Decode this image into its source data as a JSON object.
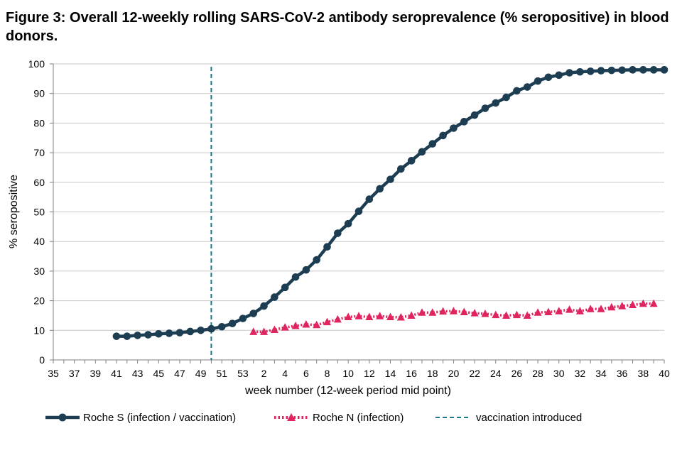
{
  "title": "Figure 3: Overall 12-weekly rolling SARS-CoV-2 antibody seroprevalence (% seropositive) in blood donors.",
  "chart_data": {
    "type": "line",
    "title": "Figure 3: Overall 12-weekly rolling SARS-CoV-2 antibody seroprevalence (% seropositive) in blood donors.",
    "xlabel": "week number (12-week period mid point)",
    "ylabel": "% seropositive",
    "ylim": [
      0,
      100
    ],
    "yticks": [
      0,
      10,
      20,
      30,
      40,
      50,
      60,
      70,
      80,
      90,
      100
    ],
    "x_categories": [
      "35",
      "36",
      "37",
      "38",
      "39",
      "40",
      "41",
      "42",
      "43",
      "44",
      "45",
      "46",
      "47",
      "48",
      "49",
      "50",
      "51",
      "52",
      "53",
      "1",
      "2",
      "3",
      "4",
      "5",
      "6",
      "7",
      "8",
      "9",
      "10",
      "11",
      "12",
      "13",
      "14",
      "15",
      "16",
      "17",
      "18",
      "19",
      "20",
      "21",
      "22",
      "23",
      "24",
      "25",
      "26",
      "27",
      "28",
      "29",
      "30",
      "31",
      "32",
      "33",
      "34",
      "35",
      "36",
      "37",
      "38",
      "39",
      "40"
    ],
    "x_tick_labels_shown": [
      "35",
      "37",
      "39",
      "41",
      "43",
      "45",
      "47",
      "49",
      "51",
      "53",
      "2",
      "4",
      "6",
      "8",
      "10",
      "12",
      "14",
      "16",
      "18",
      "20",
      "22",
      "24",
      "26",
      "28",
      "30",
      "32",
      "34",
      "36",
      "38",
      "40"
    ],
    "grid": "horizontal",
    "legend_position": "bottom",
    "series": [
      {
        "name": "Roche S (infection / vaccination)",
        "color": "#1c3d52",
        "marker": "circle",
        "start_index": 6,
        "values": [
          8,
          8,
          8.3,
          8.5,
          8.8,
          9,
          9.2,
          9.6,
          10,
          10.5,
          11.2,
          12.3,
          14,
          15.7,
          18.2,
          21.2,
          24.5,
          28,
          30.4,
          33.8,
          38.2,
          42.8,
          46,
          50.2,
          54.3,
          57.8,
          61,
          64.5,
          67.3,
          70.3,
          73,
          75.8,
          78.3,
          80.5,
          82.7,
          85,
          86.8,
          88.7,
          90.9,
          92.2,
          94.2,
          95.5,
          96.2,
          97,
          97.3,
          97.5,
          97.7,
          97.8,
          97.9,
          98,
          98,
          98,
          98
        ]
      },
      {
        "name": "Roche N (infection)",
        "color": "#e0245e",
        "marker": "triangle",
        "start_index": 19,
        "values": [
          9.5,
          9.5,
          10.2,
          11,
          11.5,
          12,
          11.8,
          12.8,
          13.7,
          14.5,
          14.8,
          14.5,
          14.8,
          14.5,
          14.4,
          15,
          16,
          16,
          16.4,
          16.5,
          16.2,
          15.8,
          15.6,
          15.2,
          15,
          15.2,
          15,
          16,
          16.2,
          16.5,
          17,
          16.5,
          17.2,
          17.2,
          17.8,
          18.2,
          18.6,
          19,
          19
        ]
      }
    ],
    "annotations": [
      {
        "name": "vaccination introduced",
        "type": "vertical-dashed-line",
        "x": "50",
        "color": "#1a7a8a"
      }
    ]
  },
  "legend": {
    "s_label": "Roche S (infection / vaccination)",
    "n_label": "Roche N (infection)",
    "vax_label": "vaccination introduced"
  }
}
